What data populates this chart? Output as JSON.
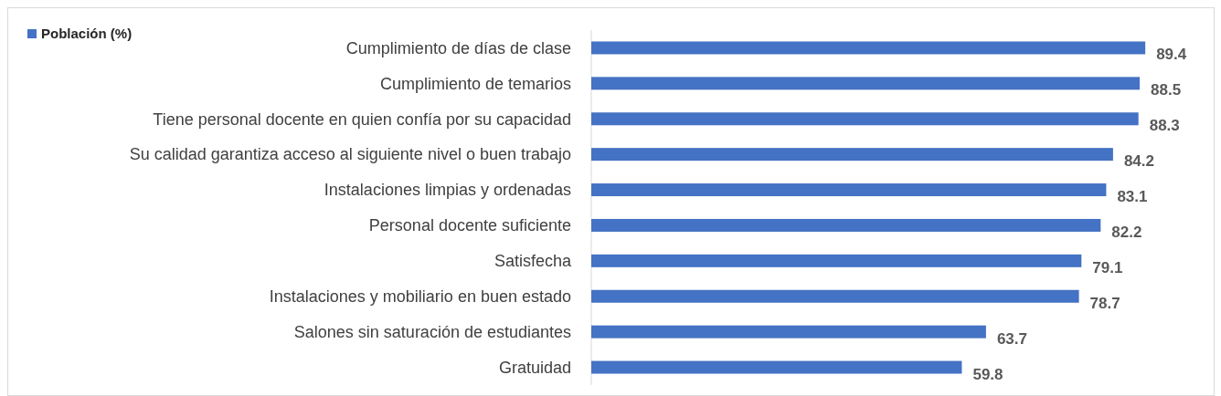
{
  "chart_data": {
    "type": "bar",
    "orientation": "horizontal",
    "categories": [
      "Cumplimiento de días de clase",
      "Cumplimiento de temarios",
      "Tiene personal docente en quien confía por su capacidad",
      "Su calidad garantiza acceso al siguiente nivel o buen trabajo",
      "Instalaciones limpias y ordenadas",
      "Personal docente suficiente",
      "Satisfecha",
      "Instalaciones y mobiliario en buen estado",
      "Salones sin saturación de estudiantes",
      "Gratuidad"
    ],
    "series": [
      {
        "name": "Población (%)",
        "color": "#4472c4",
        "values": [
          89.4,
          88.5,
          88.3,
          84.2,
          83.1,
          82.2,
          79.1,
          78.7,
          63.7,
          59.8
        ]
      }
    ],
    "xlim": [
      0,
      100
    ],
    "data_labels": true,
    "legend": "top left"
  }
}
